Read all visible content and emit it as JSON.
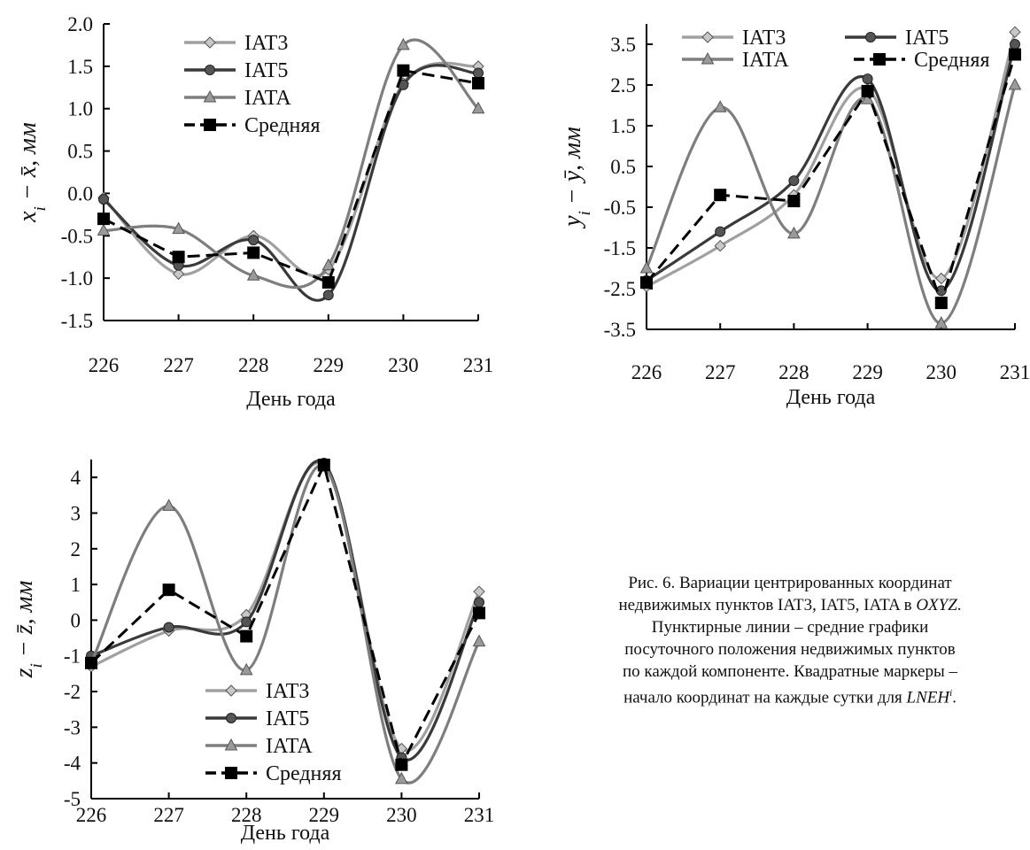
{
  "caption": {
    "lines": [
      "Рис. 6. Вариации центрированных координат",
      "недвижимых пунктов IAT3, IAT5, IATA в OXYZ.",
      "Пунктирные линии – средние графики",
      "посуточного положения недвижимых пунктов",
      "по каждой компоненте. Квадратные маркеры –",
      "начало координат на каждые сутки для LNEH(i)."
    ]
  },
  "colors": {
    "IAT3": "#a0a0a0",
    "IAT5": "#3a3a3a",
    "IATA": "#7e7e7e",
    "mean": "#000000"
  },
  "chart_data": [
    {
      "type": "line",
      "xlabel": "День года",
      "ylabel": "x_i − x̄,  мм",
      "categories": [
        226,
        227,
        228,
        229,
        230,
        231
      ],
      "ylim": [
        -1.5,
        2.0
      ],
      "yticks": [
        "-1.5",
        "-1.0",
        "-0.5",
        "0.0",
        "0.5",
        "1.0",
        "1.5",
        "2.0"
      ],
      "legend": "top-left",
      "series": [
        {
          "name": "IAT3",
          "marker": "diamond",
          "values": [
            -0.05,
            -0.95,
            -0.5,
            -0.9,
            1.3,
            1.5
          ]
        },
        {
          "name": "IAT5",
          "marker": "circle",
          "values": [
            -0.07,
            -0.85,
            -0.55,
            -1.2,
            1.28,
            1.42
          ]
        },
        {
          "name": "IATA",
          "marker": "triangle",
          "values": [
            -0.44,
            -0.42,
            -0.97,
            -0.85,
            1.75,
            1.0
          ]
        },
        {
          "name": "Средняя",
          "marker": "square",
          "dashed": true,
          "values": [
            -0.3,
            -0.75,
            -0.7,
            -1.05,
            1.45,
            1.3
          ]
        }
      ]
    },
    {
      "type": "line",
      "xlabel": "День года",
      "ylabel": "y_i − ȳ,  мм",
      "categories": [
        226,
        227,
        228,
        229,
        230,
        231
      ],
      "ylim": [
        -3.5,
        4.0
      ],
      "yticks": [
        "-3.5",
        "-2.5",
        "-1.5",
        "-0.5",
        "0.5",
        "1.5",
        "2.5",
        "3.5"
      ],
      "legend": "top",
      "series": [
        {
          "name": "IAT3",
          "marker": "diamond",
          "values": [
            -2.45,
            -1.45,
            -0.2,
            2.4,
            -2.25,
            3.8
          ]
        },
        {
          "name": "IAT5",
          "marker": "circle",
          "values": [
            -2.3,
            -1.1,
            0.15,
            2.65,
            -2.55,
            3.5
          ]
        },
        {
          "name": "IATA",
          "marker": "triangle",
          "values": [
            -2.0,
            1.95,
            -1.15,
            2.15,
            -3.35,
            2.5
          ]
        },
        {
          "name": "Средняя",
          "marker": "square",
          "dashed": true,
          "values": [
            -2.35,
            -0.2,
            -0.35,
            2.35,
            -2.85,
            3.25
          ]
        }
      ]
    },
    {
      "type": "line",
      "xlabel": "День года",
      "ylabel": "z_i − z̄,  мм",
      "categories": [
        226,
        227,
        228,
        229,
        230,
        231
      ],
      "ylim": [
        -5,
        4.5
      ],
      "yticks": [
        "-5",
        "-4",
        "-3",
        "-2",
        "-1",
        "0",
        "1",
        "2",
        "3",
        "4"
      ],
      "legend": "bottom-center",
      "series": [
        {
          "name": "IAT3",
          "marker": "diamond",
          "values": [
            -1.3,
            -0.3,
            0.15,
            4.35,
            -3.6,
            0.8
          ]
        },
        {
          "name": "IAT5",
          "marker": "circle",
          "values": [
            -1.0,
            -0.2,
            -0.05,
            4.4,
            -3.85,
            0.5
          ]
        },
        {
          "name": "IATA",
          "marker": "triangle",
          "values": [
            -1.2,
            3.2,
            -1.4,
            4.3,
            -4.45,
            -0.6
          ]
        },
        {
          "name": "Средняя",
          "marker": "square",
          "dashed": true,
          "values": [
            -1.2,
            0.85,
            -0.45,
            4.35,
            -4.05,
            0.2
          ]
        }
      ]
    }
  ]
}
